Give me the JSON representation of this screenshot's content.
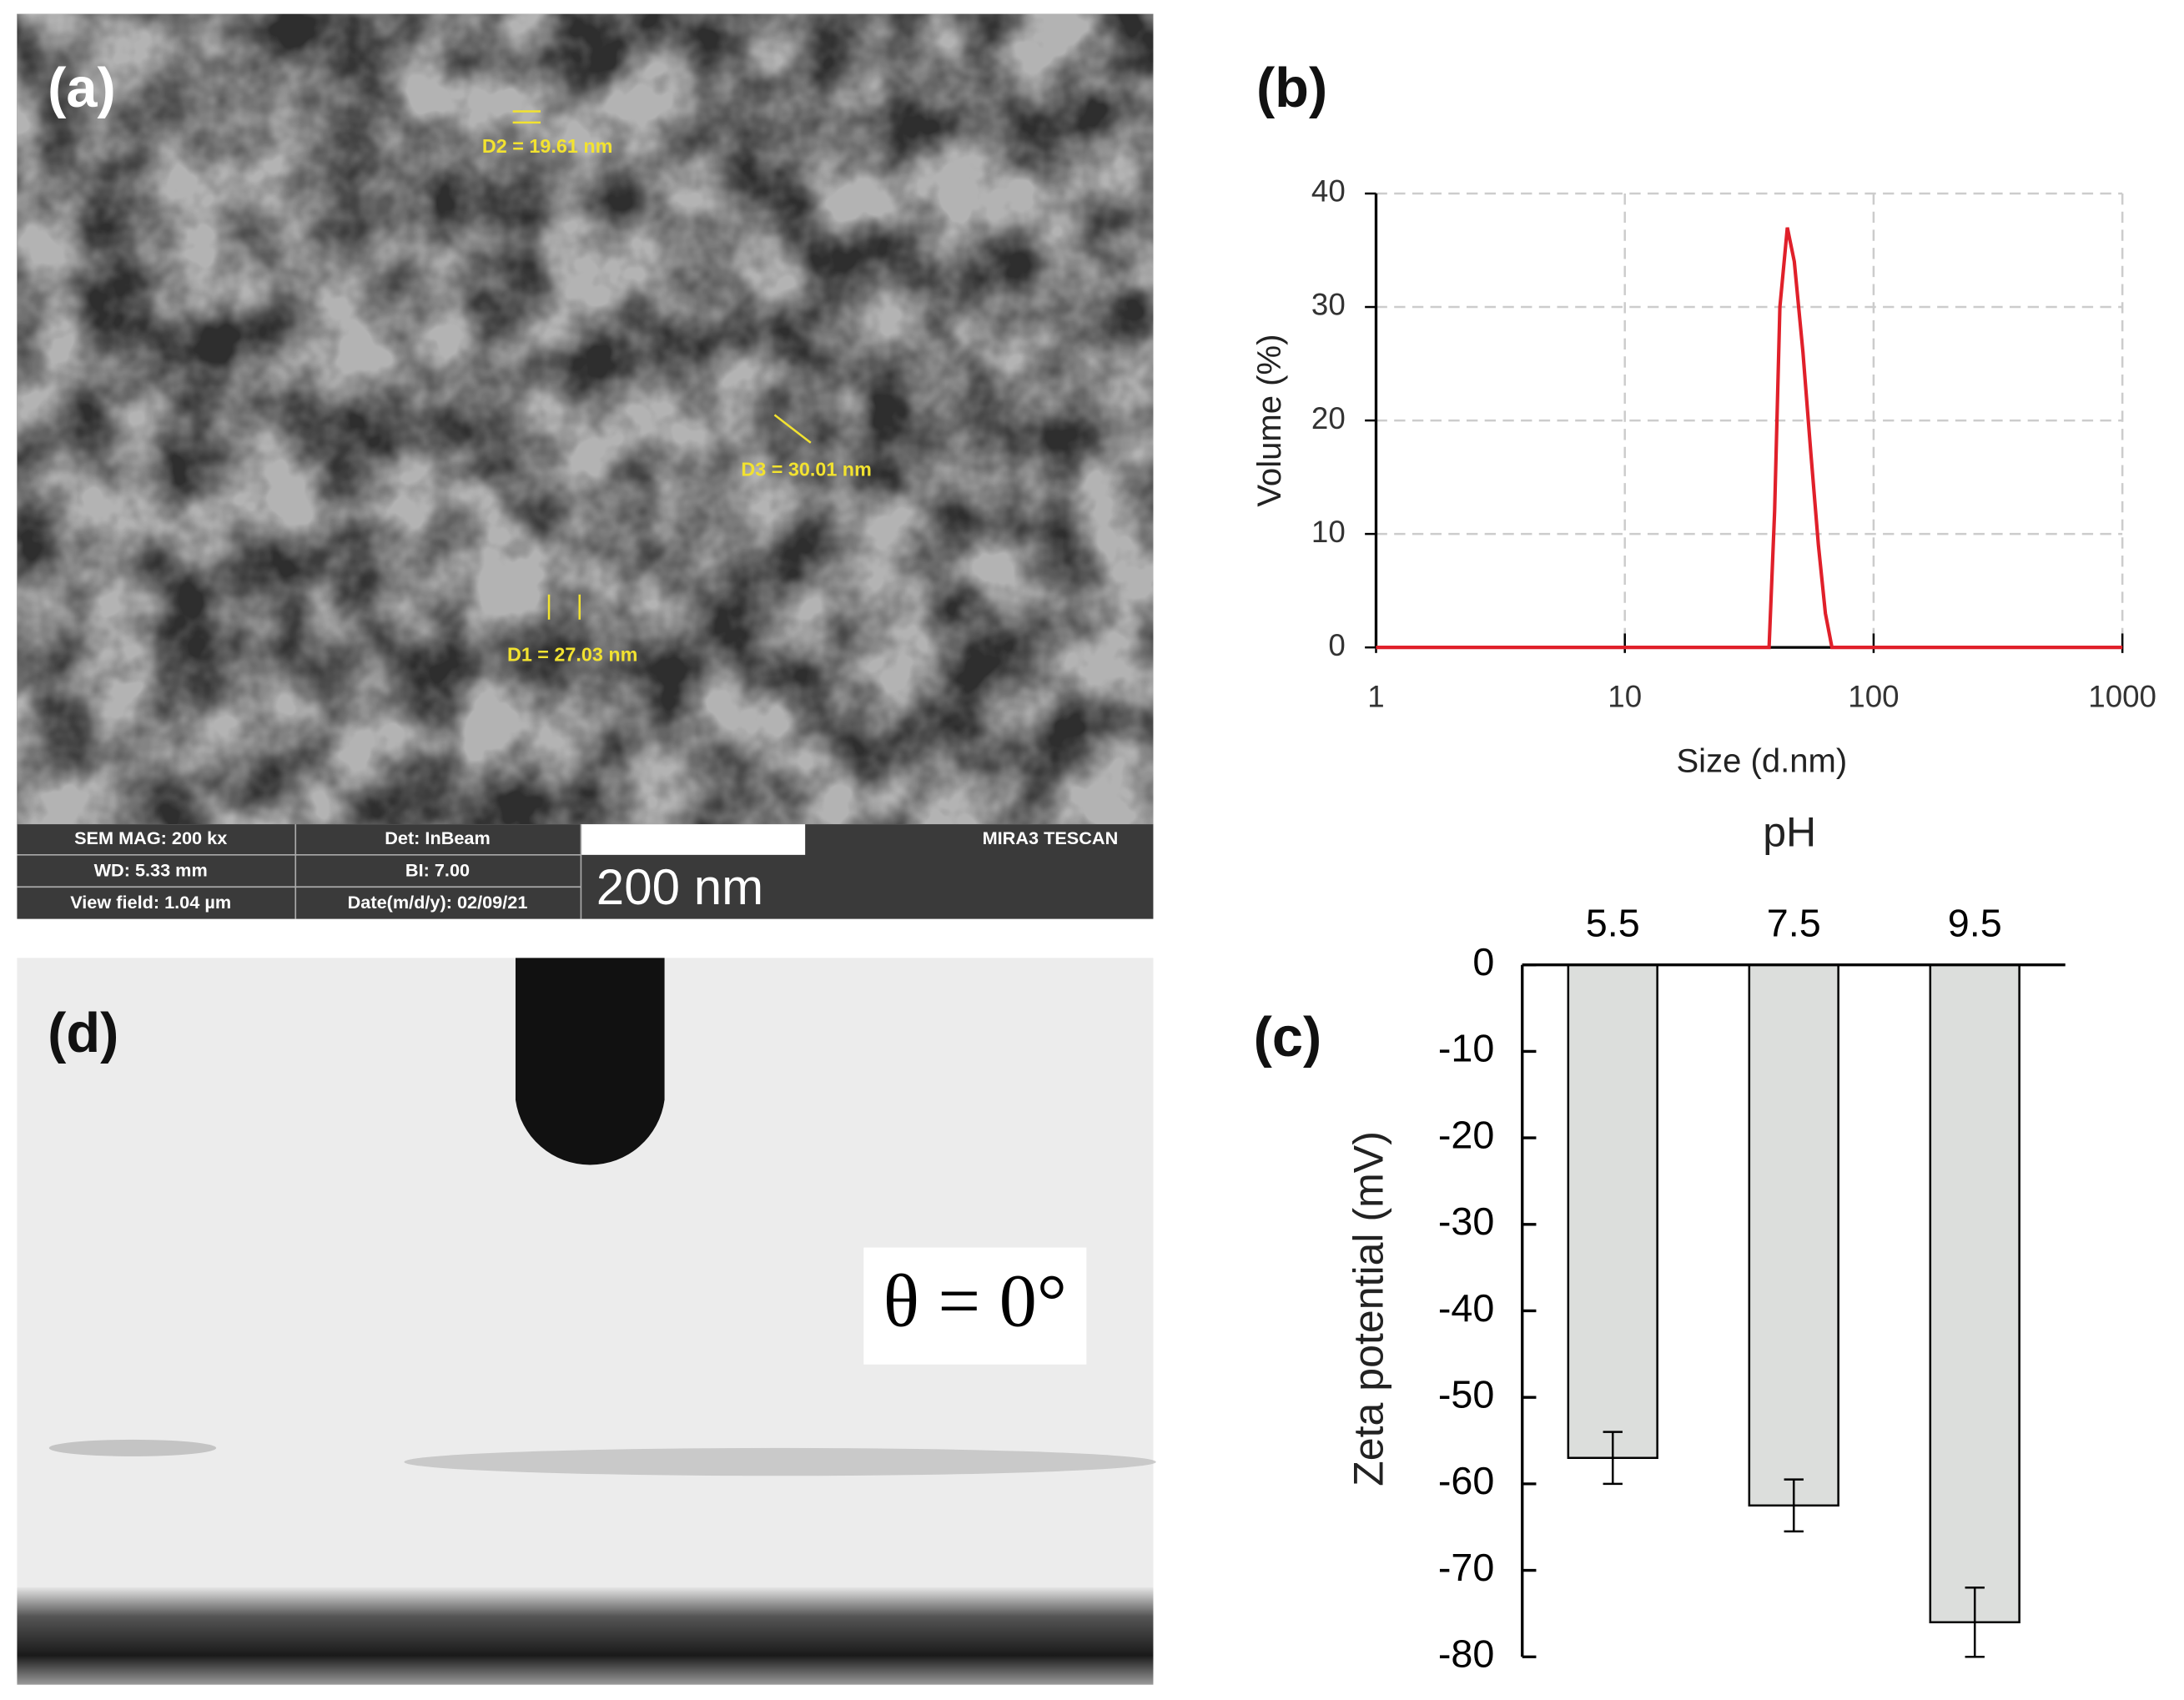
{
  "panels": {
    "a": {
      "label": "(a)",
      "measurements": [
        "D2 = 19.61 nm",
        "D3 = 30.01 nm",
        "D1 = 27.03 nm"
      ],
      "info": {
        "mag": "SEM MAG: 200 kx",
        "det": "Det: InBeam",
        "brand": "MIRA3 TESCAN",
        "wd": "WD: 5.33 mm",
        "bi": "BI: 7.00",
        "field": "View field: 1.04 µm",
        "date": "Date(m/d/y): 02/09/21",
        "scale": "200 nm"
      }
    },
    "b": {
      "label": "(b)"
    },
    "c": {
      "label": "(c)"
    },
    "d": {
      "label": "(d)",
      "angle": "θ = 0°"
    }
  },
  "chart_data": [
    {
      "type": "line",
      "xlabel": "Size (d.nm)",
      "ylabel": "Volume (%)",
      "x": [
        1,
        38,
        40,
        42,
        45,
        48,
        52,
        56,
        60,
        64,
        68,
        1000
      ],
      "series": [
        {
          "color": "#e0202a",
          "values": [
            0,
            0,
            12,
            30,
            37,
            34,
            26,
            17,
            9,
            3,
            0,
            0
          ]
        }
      ],
      "xscale": "log",
      "xlim": [
        1,
        1000
      ],
      "xticks": [
        1,
        10,
        100,
        1000
      ],
      "ylim": [
        0,
        40
      ],
      "yticks": [
        0,
        10,
        20,
        30,
        40
      ],
      "grid": true
    },
    {
      "type": "bar",
      "xlabel": "pH",
      "ylabel": "Zeta potential (mV)",
      "categories": [
        "5.5",
        "7.5",
        "9.5"
      ],
      "series": [
        {
          "color": "#dcdedc",
          "values": [
            -57,
            -62.5,
            -76
          ],
          "errors": [
            3,
            3,
            4
          ]
        }
      ],
      "ylim": [
        -80,
        0
      ],
      "yticks": [
        0,
        -10,
        -20,
        -30,
        -40,
        -50,
        -60,
        -70,
        -80
      ],
      "grid": false
    }
  ]
}
